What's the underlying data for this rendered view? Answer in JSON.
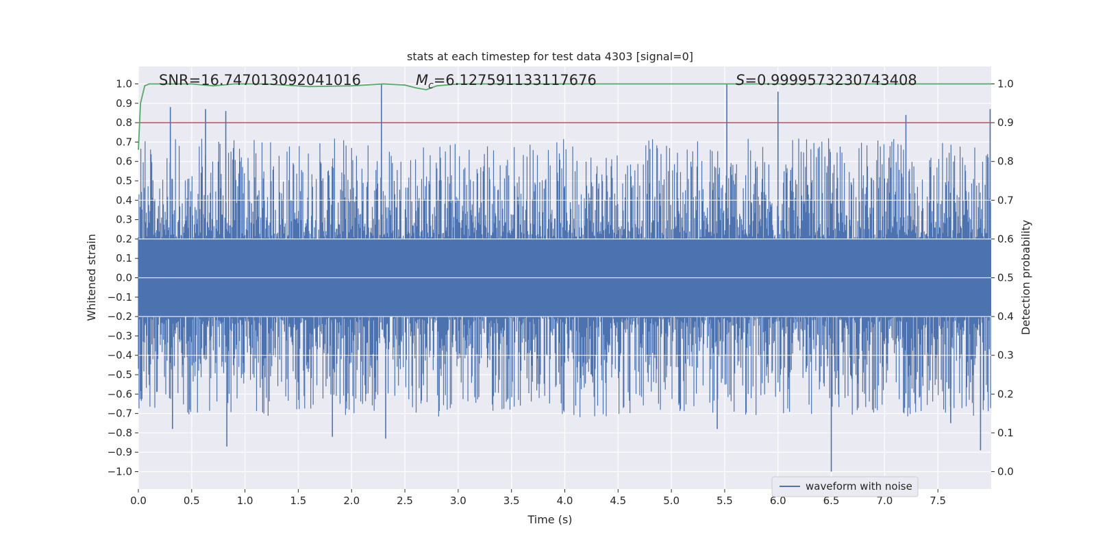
{
  "chart_data": {
    "type": "line",
    "title": "stats at each timestep for test data 4303 [signal=0]",
    "xlabel": "Time (s)",
    "ylabel_left": "Whitened strain",
    "ylabel_right": "Detection probability",
    "xlim": [
      0.0,
      8.0
    ],
    "ylim_left": [
      -1.09,
      1.09
    ],
    "ylim_right": [
      -0.045,
      1.045
    ],
    "x_ticks": [
      "0.0",
      "0.5",
      "1.0",
      "1.5",
      "2.0",
      "2.5",
      "3.0",
      "3.5",
      "4.0",
      "4.5",
      "5.0",
      "5.5",
      "6.0",
      "6.5",
      "7.0",
      "7.5"
    ],
    "x_tick_values": [
      0.0,
      0.5,
      1.0,
      1.5,
      2.0,
      2.5,
      3.0,
      3.5,
      4.0,
      4.5,
      5.0,
      5.5,
      6.0,
      6.5,
      7.0,
      7.5
    ],
    "y_ticks_left": [
      "1.0",
      "0.9",
      "0.8",
      "0.7",
      "0.6",
      "0.5",
      "0.4",
      "0.3",
      "0.2",
      "0.1",
      "0.0",
      "−0.1",
      "−0.2",
      "−0.3",
      "−0.4",
      "−0.5",
      "−0.6",
      "−0.7",
      "−0.8",
      "−0.9",
      "−1.0"
    ],
    "y_tick_values_left": [
      1.0,
      0.9,
      0.8,
      0.7,
      0.6,
      0.5,
      0.4,
      0.3,
      0.2,
      0.1,
      0.0,
      -0.1,
      -0.2,
      -0.3,
      -0.4,
      -0.5,
      -0.6,
      -0.7,
      -0.8,
      -0.9,
      -1.0
    ],
    "y_ticks_right": [
      "1.0",
      "0.9",
      "0.8",
      "0.7",
      "0.6",
      "0.5",
      "0.4",
      "0.3",
      "0.2",
      "0.1",
      "0.0"
    ],
    "y_tick_values_right": [
      1.0,
      0.9,
      0.8,
      0.7,
      0.6,
      0.5,
      0.4,
      0.3,
      0.2,
      0.1,
      0.0
    ],
    "grid": true,
    "legend": {
      "entries": [
        "waveform with noise"
      ],
      "placement": "lower-right"
    },
    "annotations": {
      "snr": "SNR=16.747013092041016",
      "mc_symbol": "M",
      "mc_subscript": "c",
      "mc_value": "=6.127591133117676",
      "s_symbol": "S",
      "s_value": "=0.9999573230743408"
    },
    "series": [
      {
        "name": "waveform with noise",
        "axis": "left",
        "color": "#4c72b0",
        "noise_envelope": {
          "min": -0.4,
          "max": 0.4
        },
        "spikes": [
          {
            "x": 0.3,
            "y": 0.88
          },
          {
            "x": 0.32,
            "y": -0.78
          },
          {
            "x": 0.63,
            "y": 0.87
          },
          {
            "x": 0.82,
            "y": 0.86
          },
          {
            "x": 0.83,
            "y": -0.87
          },
          {
            "x": 1.82,
            "y": -0.82
          },
          {
            "x": 2.28,
            "y": 1.0
          },
          {
            "x": 2.32,
            "y": -0.83
          },
          {
            "x": 5.52,
            "y": 1.0
          },
          {
            "x": 5.43,
            "y": -0.78
          },
          {
            "x": 6.0,
            "y": 0.96
          },
          {
            "x": 6.5,
            "y": -1.0
          },
          {
            "x": 7.2,
            "y": 0.84
          },
          {
            "x": 7.62,
            "y": -0.75
          },
          {
            "x": 7.9,
            "y": -0.89
          },
          {
            "x": 7.99,
            "y": 0.87
          }
        ]
      },
      {
        "name": "detection probability",
        "axis": "right",
        "color": "#55a868",
        "x": [
          0.0,
          0.02,
          0.06,
          0.1,
          0.3,
          0.5,
          0.7,
          0.9,
          1.2,
          1.6,
          2.0,
          2.3,
          2.5,
          2.6,
          2.7,
          2.8,
          3.0,
          4.0,
          5.0,
          6.0,
          7.0,
          8.0
        ],
        "y": [
          0.83,
          0.95,
          0.995,
          1.0,
          1.0,
          1.0,
          0.995,
          1.0,
          1.0,
          0.993,
          0.995,
          1.0,
          0.997,
          0.99,
          0.985,
          0.995,
          1.0,
          1.0,
          1.0,
          1.0,
          1.0,
          1.0
        ]
      },
      {
        "name": "threshold",
        "axis": "right",
        "color": "#c44e52",
        "x": [
          0.0,
          8.0
        ],
        "y": [
          0.9,
          0.9
        ]
      }
    ]
  }
}
